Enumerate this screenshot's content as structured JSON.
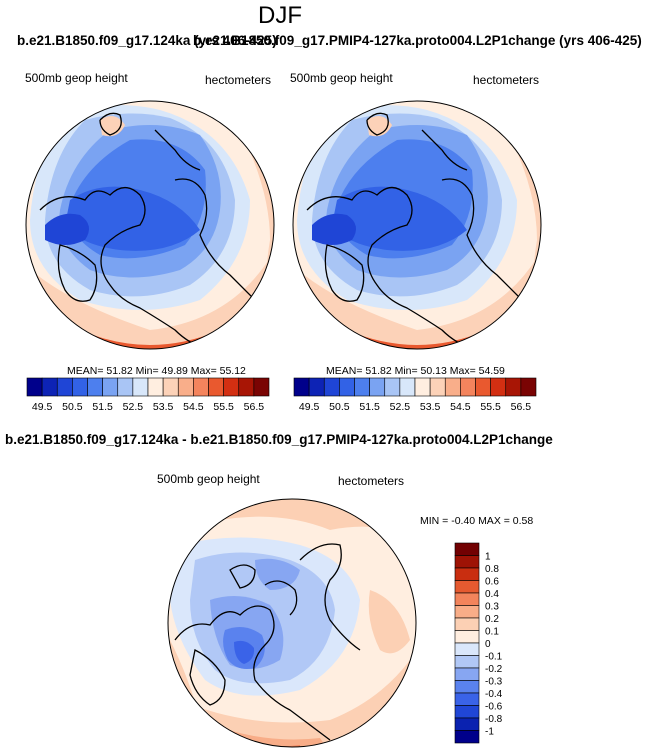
{
  "title": "DJF",
  "panels": [
    {
      "case_title": "b.e21.B1850.f09_g17.124ka (yrs 406-425)",
      "variable": "500mb geop height",
      "units": "hectometers",
      "stats": "MEAN=  51.82  Min=  49.89  Max=  55.12",
      "colorbar_labels": [
        "49.5",
        "50.5",
        "51.5",
        "52.5",
        "53.5",
        "54.5",
        "55.5",
        "56.5"
      ]
    },
    {
      "case_title": "b.e21.B1850.f09_g17.PMIP4-127ka.proto004.L2P1change (yrs 406-425)",
      "variable": "500mb geop height",
      "units": "hectometers",
      "stats": "MEAN=  51.82  Min=  50.13  Max=  54.59",
      "colorbar_labels": [
        "49.5",
        "50.5",
        "51.5",
        "52.5",
        "53.5",
        "54.5",
        "55.5",
        "56.5"
      ]
    }
  ],
  "diff_panel": {
    "case_title": "b.e21.B1850.f09_g17.124ka - b.e21.B1850.f09_g17.PMIP4-127ka.proto004.L2P1change",
    "variable": "500mb geop height",
    "units": "hectometers",
    "stats": "MIN =  -0.40 MAX =   0.58",
    "colorbar_labels": [
      "1",
      "0.8",
      "0.6",
      "0.4",
      "0.3",
      "0.2",
      "0.1",
      "0",
      "-0.1",
      "-0.2",
      "-0.3",
      "-0.4",
      "-0.6",
      "-0.8",
      "-1"
    ]
  },
  "colors": {
    "abs_scale": [
      "#00008b",
      "#0d23b5",
      "#1f45d6",
      "#3262e6",
      "#4d7fee",
      "#7aa3f2",
      "#a9c5f5",
      "#d8e7fa",
      "#ffeee0",
      "#fcd2b8",
      "#f9ae8a",
      "#f4845d",
      "#e9592f",
      "#d32f12",
      "#a81505",
      "#7a0403"
    ],
    "diff_scale": [
      "#00008b",
      "#0a22b0",
      "#2046d6",
      "#3a63e8",
      "#5a82ee",
      "#87a6f2",
      "#b1c8f6",
      "#dae7fb",
      "#ffeee0",
      "#fcd0b4",
      "#f8ad88",
      "#f2845c",
      "#e55a30",
      "#c92e10",
      "#9e1305",
      "#720102"
    ]
  },
  "chart_data": [
    {
      "type": "heatmap",
      "title": "b.e21.B1850.f09_g17.124ka (yrs 406-425)",
      "variable": "500mb geop height",
      "units": "hectometers",
      "projection": "north polar stereographic",
      "mean": 51.82,
      "min": 49.89,
      "max": 55.12,
      "contour_levels": [
        49.5,
        50,
        50.5,
        51,
        51.5,
        52,
        52.5,
        53,
        53.5,
        54,
        54.5,
        55,
        55.5,
        56,
        56.5
      ]
    },
    {
      "type": "heatmap",
      "title": "b.e21.B1850.f09_g17.PMIP4-127ka.proto004.L2P1change (yrs 406-425)",
      "variable": "500mb geop height",
      "units": "hectometers",
      "projection": "north polar stereographic",
      "mean": 51.82,
      "min": 50.13,
      "max": 54.59,
      "contour_levels": [
        49.5,
        50,
        50.5,
        51,
        51.5,
        52,
        52.5,
        53,
        53.5,
        54,
        54.5,
        55,
        55.5,
        56,
        56.5
      ]
    },
    {
      "type": "heatmap",
      "title": "b.e21.B1850.f09_g17.124ka - b.e21.B1850.f09_g17.PMIP4-127ka.proto004.L2P1change",
      "variable": "500mb geop height",
      "units": "hectometers",
      "projection": "north polar stereographic",
      "min": -0.4,
      "max": 0.58,
      "contour_levels": [
        -1,
        -0.8,
        -0.6,
        -0.4,
        -0.3,
        -0.2,
        -0.1,
        0,
        0.1,
        0.2,
        0.3,
        0.4,
        0.6,
        0.8,
        1
      ]
    }
  ]
}
